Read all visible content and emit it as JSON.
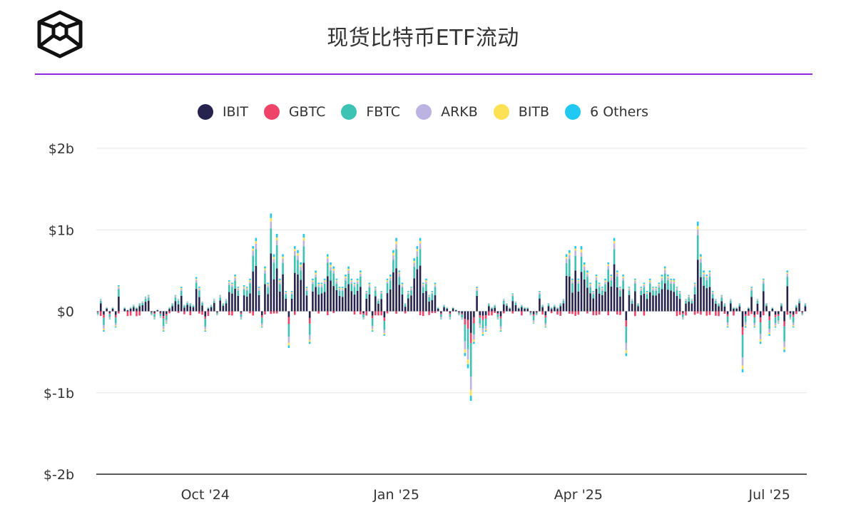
{
  "title": "现货比特币ETF流动",
  "colors": {
    "IBIT": "#27234f",
    "GBTC": "#f0436a",
    "FBTC": "#3cc3b4",
    "ARKB": "#bdb3e2",
    "BITB": "#fbe153",
    "6 Others": "#1fc9f2",
    "accent_rule": "#8a2be2"
  },
  "legend": [
    "IBIT",
    "GBTC",
    "FBTC",
    "ARKB",
    "BITB",
    "6 Others"
  ],
  "chart_data": {
    "type": "bar",
    "stacked": true,
    "title": "现货比特币ETF流动",
    "ylim": [
      -2,
      2
    ],
    "y_unit": "billion USD",
    "y_ticks": [
      {
        "value": 2,
        "label": "$2b"
      },
      {
        "value": 1,
        "label": "$1b"
      },
      {
        "value": 0,
        "label": "$0"
      },
      {
        "value": -1,
        "label": "$-1b"
      },
      {
        "value": -2,
        "label": "$-2b"
      }
    ],
    "x_ticks": [
      {
        "index": 36,
        "label": "Oct '24"
      },
      {
        "index": 100,
        "label": "Jan '25"
      },
      {
        "index": 161,
        "label": "Apr '25"
      },
      {
        "index": 225,
        "label": "Jul '25"
      }
    ],
    "grid": true,
    "legend_position": "top-center",
    "series_names": [
      "IBIT",
      "GBTC",
      "FBTC",
      "ARKB",
      "BITB",
      "6 Others"
    ],
    "approx_daily_totals": [
      -0.05,
      0.15,
      -0.25,
      0.05,
      -0.1,
      0.05,
      -0.2,
      0.32,
      0.0,
      0.05,
      0.02,
      0.05,
      0.08,
      0.05,
      0.1,
      0.12,
      0.18,
      0.2,
      -0.05,
      -0.1,
      0.02,
      -0.08,
      -0.25,
      -0.15,
      0.05,
      0.1,
      0.2,
      0.15,
      0.3,
      0.08,
      0.12,
      0.1,
      0.08,
      0.42,
      0.3,
      0.12,
      -0.25,
      0.05,
      0.08,
      0.15,
      -0.05,
      0.2,
      0.1,
      0.15,
      0.38,
      0.35,
      0.45,
      0.3,
      -0.1,
      0.32,
      0.3,
      0.4,
      0.8,
      0.9,
      0.3,
      -0.2,
      0.55,
      0.35,
      1.2,
      0.7,
      0.95,
      0.4,
      0.7,
      0.25,
      -0.45,
      0.25,
      0.8,
      0.75,
      0.6,
      0.95,
      0.3,
      -0.4,
      0.4,
      0.5,
      0.35,
      0.35,
      0.4,
      0.7,
      0.6,
      0.55,
      0.4,
      0.3,
      0.3,
      0.45,
      0.55,
      0.4,
      0.35,
      0.4,
      0.5,
      -0.1,
      0.25,
      0.35,
      -0.25,
      0.3,
      0.15,
      0.25,
      -0.3,
      0.4,
      0.45,
      0.75,
      0.9,
      0.5,
      0.35,
      0.1,
      0.25,
      0.3,
      0.65,
      0.8,
      0.9,
      0.35,
      0.4,
      0.2,
      0.25,
      0.35,
      0.05,
      -0.1,
      0.08,
      0.05,
      -0.1,
      0.05,
      0.02,
      -0.05,
      -0.1,
      -0.55,
      -0.7,
      -1.1,
      -0.4,
      0.3,
      -0.2,
      -0.3,
      -0.25,
      0.1,
      0.05,
      0.08,
      -0.1,
      -0.25,
      0.15,
      0.1,
      0.05,
      0.22,
      0.12,
      0.05,
      0.08,
      0.05,
      0.05,
      -0.05,
      -0.15,
      -0.05,
      0.25,
      0.08,
      -0.2,
      0.1,
      0.05,
      0.08,
      0.05,
      0.1,
      0.15,
      0.7,
      0.75,
      0.4,
      0.8,
      0.4,
      0.8,
      0.6,
      0.5,
      0.35,
      0.25,
      0.45,
      0.35,
      0.3,
      0.4,
      0.6,
      0.45,
      0.9,
      0.5,
      0.3,
      0.45,
      -0.55,
      0.3,
      0.15,
      0.4,
      0.1,
      0.3,
      0.35,
      0.25,
      0.4,
      0.3,
      0.3,
      0.35,
      0.45,
      0.55,
      0.45,
      0.4,
      0.4,
      0.3,
      0.25,
      -0.1,
      0.15,
      0.2,
      0.15,
      0.35,
      1.1,
      0.7,
      0.5,
      0.45,
      0.5,
      0.25,
      0.15,
      0.1,
      0.2,
      0.1,
      -0.2,
      0.15,
      0.05,
      0.05,
      0.1,
      -0.75,
      -0.2,
      0.05,
      0.3,
      -0.2,
      0.15,
      -0.4,
      0.4,
      0.1,
      -0.3,
      0.05,
      -0.2,
      -0.15,
      0.1,
      -0.5,
      0.5,
      -0.1,
      -0.2,
      0.08,
      0.15,
      -0.05,
      0.1
    ]
  }
}
